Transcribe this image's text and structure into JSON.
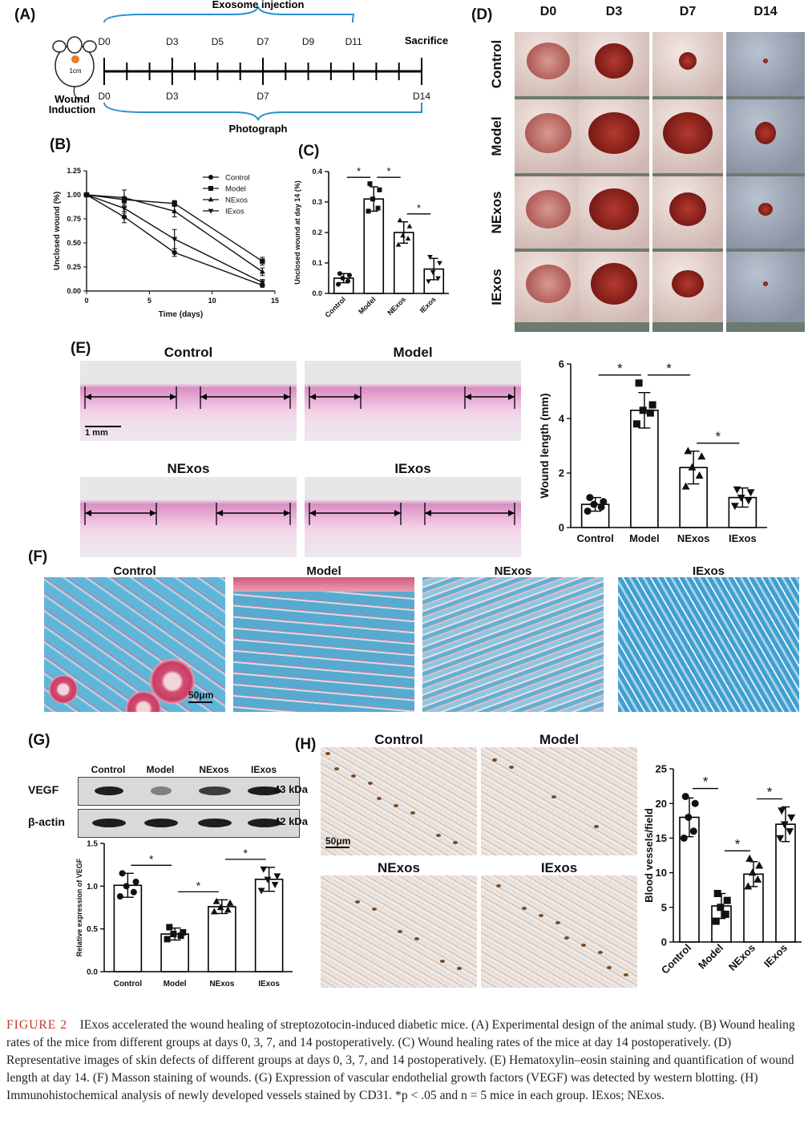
{
  "panels": {
    "A": {
      "label": "(A)",
      "exosome_injection": "Exosome injection",
      "photograph": "Photograph",
      "sacrifice": "Sacrifice",
      "wound_induction": "Wound Induction",
      "mouse_spot": "1cm",
      "top_days": [
        "D0",
        "D3",
        "D5",
        "D7",
        "D9",
        "D11"
      ],
      "bottom_days": [
        "D0",
        "D3",
        "D7",
        "D14"
      ]
    },
    "B": {
      "label": "(B)"
    },
    "C": {
      "label": "(C)"
    },
    "D": {
      "label": "(D)",
      "columns": [
        "D0",
        "D3",
        "D7",
        "D14"
      ],
      "rows": [
        "Control",
        "Model",
        "NExos",
        "IExos"
      ]
    },
    "E": {
      "label": "(E)",
      "titles": [
        "Control",
        "Model",
        "NExos",
        "IExos"
      ],
      "scalebar": "1 mm"
    },
    "F": {
      "label": "(F)",
      "titles": [
        "Control",
        "Model",
        "NExos",
        "IExos"
      ],
      "scalebar": "50μm"
    },
    "G": {
      "label": "(G)",
      "blot_columns": [
        "Control",
        "Model",
        "NExos",
        "IExos"
      ],
      "rows": [
        {
          "name": "VEGF",
          "kda": "43 kDa"
        },
        {
          "name": "β-actin",
          "kda": "42 kDa"
        }
      ]
    },
    "H": {
      "label": "(H)",
      "titles": [
        "Control",
        "Model",
        "NExos",
        "IExos"
      ],
      "scalebar": "50μm"
    }
  },
  "chart_data": [
    {
      "id": "B",
      "type": "line",
      "xlabel": "Time (days)",
      "ylabel": "Unclosed wound (%)",
      "xlim": [
        0,
        15
      ],
      "ylim": [
        0,
        1.25
      ],
      "xticks": [
        "0",
        "5",
        "10",
        "15"
      ],
      "yticks": [
        "0.00",
        "0.25",
        "0.50",
        "0.75",
        "1.00",
        "1.25"
      ],
      "x": [
        0,
        3,
        7,
        14
      ],
      "legend_position": "top-right",
      "series": [
        {
          "name": "Control",
          "marker": "circle",
          "values": [
            1.0,
            0.77,
            0.4,
            0.06
          ],
          "err": [
            0.01,
            0.06,
            0.04,
            0.02
          ]
        },
        {
          "name": "Model",
          "marker": "square",
          "values": [
            1.0,
            0.95,
            0.91,
            0.31
          ],
          "err": [
            0.01,
            0.03,
            0.03,
            0.04
          ]
        },
        {
          "name": "NExos",
          "marker": "triangle",
          "values": [
            1.0,
            0.97,
            0.83,
            0.2
          ],
          "err": [
            0.01,
            0.08,
            0.06,
            0.04
          ]
        },
        {
          "name": "IExos",
          "marker": "triangle-down",
          "values": [
            1.0,
            0.86,
            0.54,
            0.09
          ],
          "err": [
            0.01,
            0.05,
            0.1,
            0.03
          ]
        }
      ]
    },
    {
      "id": "C",
      "type": "bar",
      "ylabel": "Unclosed wound at day 14 (%)",
      "categories": [
        "Control",
        "Model",
        "NExos",
        "IExos"
      ],
      "markers": [
        "circle",
        "square",
        "triangle",
        "triangle-down"
      ],
      "values": [
        0.05,
        0.31,
        0.2,
        0.08
      ],
      "err": [
        0.015,
        0.04,
        0.035,
        0.035
      ],
      "points": [
        [
          0.03,
          0.04,
          0.05,
          0.06,
          0.065
        ],
        [
          0.27,
          0.28,
          0.31,
          0.34,
          0.36
        ],
        [
          0.16,
          0.18,
          0.19,
          0.22,
          0.24
        ],
        [
          0.04,
          0.05,
          0.07,
          0.1,
          0.12
        ]
      ],
      "ylim": [
        0,
        0.4
      ],
      "yticks": [
        "0.0",
        "0.1",
        "0.2",
        "0.3",
        "0.4"
      ],
      "sig": [
        {
          "from": 0,
          "to": 1,
          "label": "*"
        },
        {
          "from": 1,
          "to": 2,
          "label": "*"
        },
        {
          "from": 2,
          "to": 3,
          "label": "*"
        }
      ]
    },
    {
      "id": "E",
      "type": "bar",
      "ylabel": "Wound length (mm)",
      "categories": [
        "Control",
        "Model",
        "NExos",
        "IExos"
      ],
      "markers": [
        "circle",
        "square",
        "triangle",
        "triangle-down"
      ],
      "values": [
        0.85,
        4.3,
        2.2,
        1.1
      ],
      "err": [
        0.25,
        0.65,
        0.6,
        0.35
      ],
      "points": [
        [
          0.6,
          0.75,
          0.85,
          0.95,
          1.1
        ],
        [
          3.8,
          4.2,
          4.3,
          4.5,
          5.3
        ],
        [
          1.5,
          1.9,
          2.2,
          2.6,
          2.8
        ],
        [
          0.8,
          1.0,
          1.1,
          1.3,
          1.4
        ]
      ],
      "ylim": [
        0,
        6
      ],
      "yticks": [
        "0",
        "2",
        "4",
        "6"
      ],
      "sig": [
        {
          "from": 0,
          "to": 1,
          "label": "*"
        },
        {
          "from": 1,
          "to": 2,
          "label": "*"
        },
        {
          "from": 2,
          "to": 3,
          "label": "*"
        }
      ]
    },
    {
      "id": "G",
      "type": "bar",
      "ylabel": "Relative expression of VEGF",
      "categories": [
        "Control",
        "Model",
        "NExos",
        "IExos"
      ],
      "markers": [
        "circle",
        "square",
        "triangle",
        "triangle-down"
      ],
      "values": [
        1.01,
        0.44,
        0.76,
        1.08
      ],
      "err": [
        0.14,
        0.07,
        0.08,
        0.14
      ],
      "points": [
        [
          0.88,
          0.93,
          1.0,
          1.05,
          1.15
        ],
        [
          0.38,
          0.42,
          0.44,
          0.46,
          0.52
        ],
        [
          0.7,
          0.72,
          0.75,
          0.8,
          0.82
        ],
        [
          0.95,
          1.02,
          1.08,
          1.12,
          1.2
        ]
      ],
      "ylim": [
        0,
        1.5
      ],
      "yticks": [
        "0.0",
        "0.5",
        "1.0",
        "1.5"
      ],
      "sig": [
        {
          "from": 0,
          "to": 1,
          "label": "*"
        },
        {
          "from": 1,
          "to": 2,
          "label": "*"
        },
        {
          "from": 2,
          "to": 3,
          "label": "*"
        }
      ]
    },
    {
      "id": "H",
      "type": "bar",
      "ylabel": "Blood vessels/field",
      "categories": [
        "Control",
        "Model",
        "NExos",
        "IExos"
      ],
      "markers": [
        "circle",
        "square",
        "triangle",
        "triangle-down"
      ],
      "values": [
        18,
        5.2,
        9.8,
        17
      ],
      "err": [
        2.8,
        1.8,
        1.8,
        2.5
      ],
      "points": [
        [
          15,
          16,
          18,
          20,
          21
        ],
        [
          3,
          4,
          5,
          6,
          7
        ],
        [
          8,
          9,
          10,
          11,
          12
        ],
        [
          15,
          16,
          17,
          18,
          19
        ]
      ],
      "ylim": [
        0,
        25
      ],
      "yticks": [
        "0",
        "5",
        "10",
        "15",
        "20",
        "25"
      ],
      "sig": [
        {
          "from": 0,
          "to": 1,
          "label": "*"
        },
        {
          "from": 1,
          "to": 2,
          "label": "*"
        },
        {
          "from": 2,
          "to": 3,
          "label": "*"
        }
      ]
    }
  ],
  "caption": {
    "figure_label": "FIGURE 2",
    "text": "IExos accelerated the wound healing of streptozotocin-induced diabetic mice. (A) Experimental design of the animal study. (B) Wound healing rates of the mice from different groups at days 0, 3, 7, and 14 postoperatively. (C) Wound healing rates of the mice at day 14 postoperatively. (D) Representative images of skin defects of different groups at days 0, 3, 7, and 14 postoperatively. (E) Hematoxylin–eosin staining and quantification of wound length at day 14. (F) Masson staining of wounds. (G) Expression of vascular endothelial growth factors (VEGF) was detected by western blotting. (H) Immunohistochemical analysis of newly developed vessels stained by CD31. *p < .05 and n = 5 mice in each group. IExos; NExos."
  }
}
